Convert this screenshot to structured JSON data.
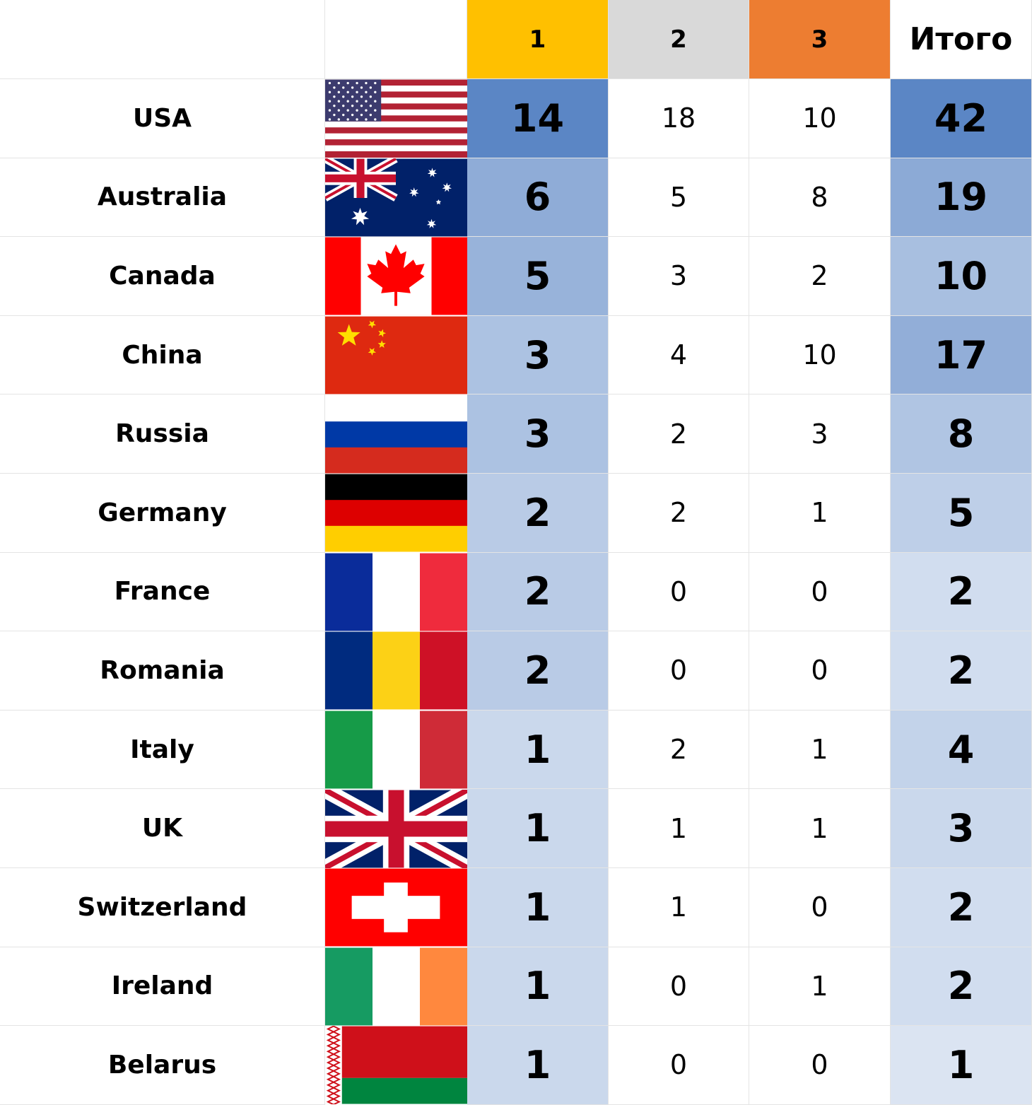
{
  "chart_data": {
    "type": "table",
    "columns": [
      "",
      "",
      "1",
      "2",
      "3",
      "Итого"
    ],
    "header_colors": {
      "1": "#FFC000",
      "2": "#D9D9D9",
      "3": "#ED7D31"
    },
    "rows": [
      {
        "country": "USA",
        "flag": "usa-flag-icon",
        "m1": 14,
        "m2": 18,
        "m3": 10,
        "total": 42
      },
      {
        "country": "Australia",
        "flag": "australia-flag-icon",
        "m1": 6,
        "m2": 5,
        "m3": 8,
        "total": 19
      },
      {
        "country": "Canada",
        "flag": "canada-flag-icon",
        "m1": 5,
        "m2": 3,
        "m3": 2,
        "total": 10
      },
      {
        "country": "China",
        "flag": "china-flag-icon",
        "m1": 3,
        "m2": 4,
        "m3": 10,
        "total": 17
      },
      {
        "country": "Russia",
        "flag": "russia-flag-icon",
        "m1": 3,
        "m2": 2,
        "m3": 3,
        "total": 8
      },
      {
        "country": "Germany",
        "flag": "germany-flag-icon",
        "m1": 2,
        "m2": 2,
        "m3": 1,
        "total": 5
      },
      {
        "country": "France",
        "flag": "france-flag-icon",
        "m1": 2,
        "m2": 0,
        "m3": 0,
        "total": 2
      },
      {
        "country": "Romania",
        "flag": "romania-flag-icon",
        "m1": 2,
        "m2": 0,
        "m3": 0,
        "total": 2
      },
      {
        "country": "Italy",
        "flag": "italy-flag-icon",
        "m1": 1,
        "m2": 2,
        "m3": 1,
        "total": 4
      },
      {
        "country": "UK",
        "flag": "uk-flag-icon",
        "m1": 1,
        "m2": 1,
        "m3": 1,
        "total": 3
      },
      {
        "country": "Switzerland",
        "flag": "switzerland-flag-icon",
        "m1": 1,
        "m2": 1,
        "m3": 0,
        "total": 2
      },
      {
        "country": "Ireland",
        "flag": "ireland-flag-icon",
        "m1": 1,
        "m2": 0,
        "m3": 1,
        "total": 2
      },
      {
        "country": "Belarus",
        "flag": "belarus-flag-icon",
        "m1": 1,
        "m2": 0,
        "m3": 0,
        "total": 1
      }
    ],
    "heat_color": "#5B86C5"
  }
}
